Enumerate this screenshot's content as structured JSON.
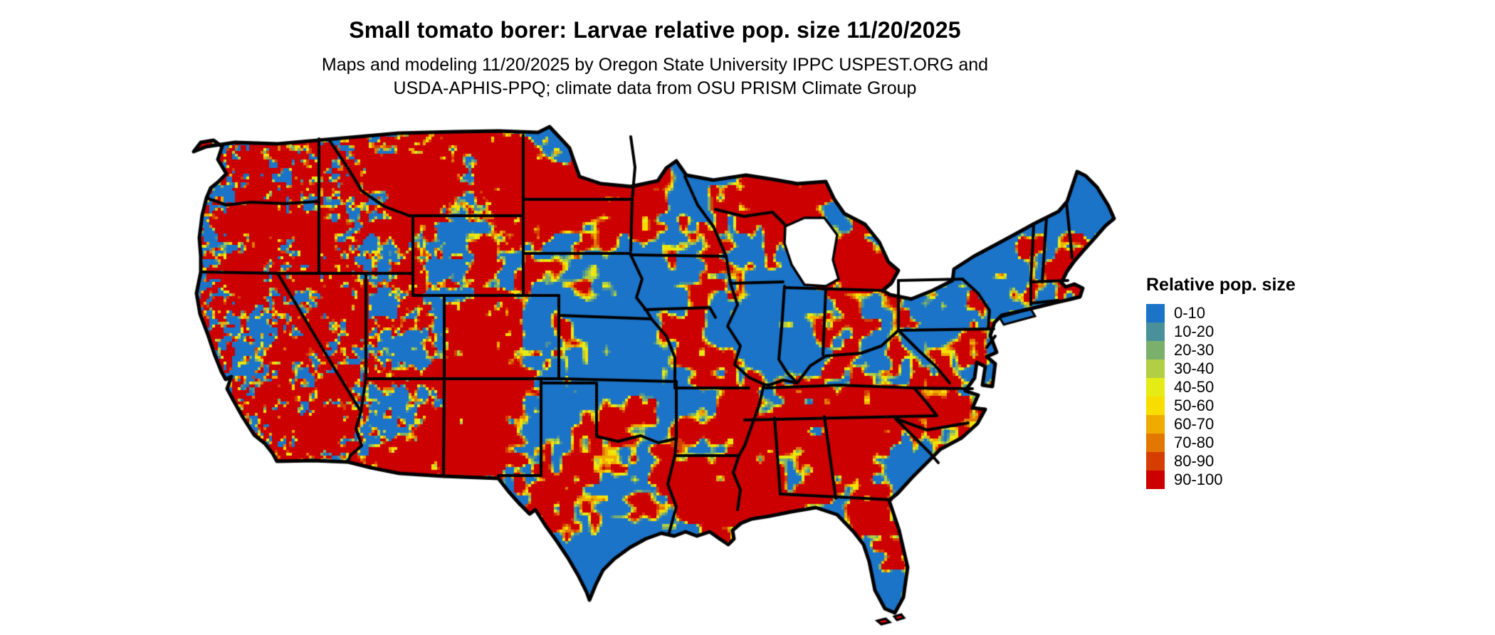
{
  "header": {
    "title": "Small tomato borer: Larvae relative pop. size 11/20/2025",
    "subtitle_line1": "Maps and modeling 11/20/2025 by Oregon State University IPPC USPEST.ORG and",
    "subtitle_line2": "USDA-APHIS-PPQ; climate data from OSU PRISM Climate Group"
  },
  "map": {
    "description": "Contiguous United States raster map of small tomato borer larvae relative population size",
    "dominant_low_color": "#1B74C8",
    "dominant_high_color": "#CC0000",
    "state_border_color": "#000000",
    "water_background_color": "#FFFFFF"
  },
  "legend": {
    "title": "Relative pop. size",
    "items": [
      {
        "label": "0-10",
        "color": "#1B74C8"
      },
      {
        "label": "10-20",
        "color": "#4A909B"
      },
      {
        "label": "20-30",
        "color": "#7BB06C"
      },
      {
        "label": "30-40",
        "color": "#B2CE45"
      },
      {
        "label": "40-50",
        "color": "#E5EC15"
      },
      {
        "label": "50-60",
        "color": "#F8DE00"
      },
      {
        "label": "60-70",
        "color": "#EFAC00"
      },
      {
        "label": "70-80",
        "color": "#E27800"
      },
      {
        "label": "80-90",
        "color": "#D63E00"
      },
      {
        "label": "90-100",
        "color": "#CC0000"
      }
    ]
  }
}
